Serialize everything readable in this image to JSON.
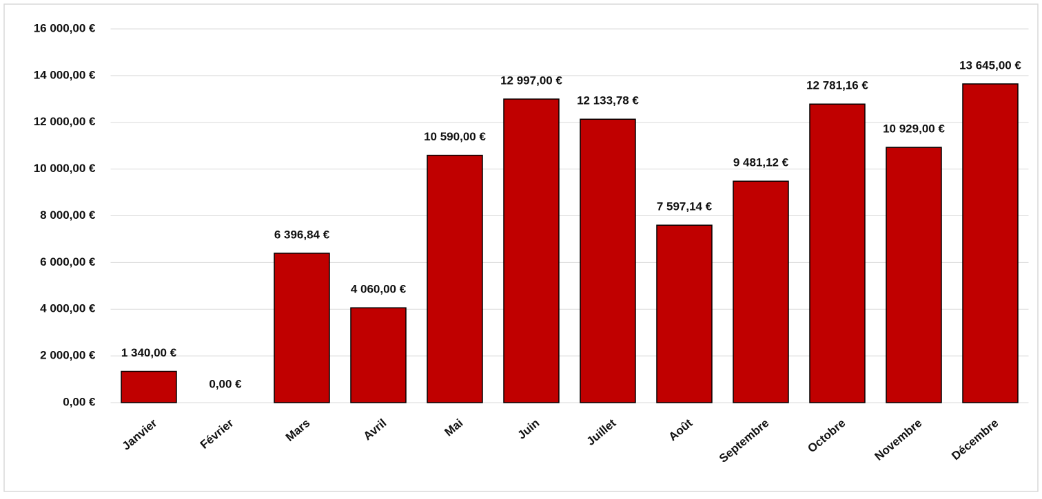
{
  "chart_data": {
    "type": "bar",
    "categories": [
      "Janvier",
      "Février",
      "Mars",
      "Avril",
      "Mai",
      "Juin",
      "Juillet",
      "Août",
      "Septembre",
      "Octobre",
      "Novembre",
      "Décembre"
    ],
    "values": [
      1340,
      0,
      6396.84,
      4060,
      10590,
      12997,
      12133.78,
      7597.14,
      9481.12,
      12781.16,
      10929,
      13645
    ],
    "value_labels": [
      "1 340,00 €",
      "0,00 €",
      "6 396,84 €",
      "4 060,00 €",
      "10 590,00 €",
      "12 997,00 €",
      "12 133,78 €",
      "7 597,14 €",
      "9 481,12 €",
      "12 781,16 €",
      "10 929,00 €",
      "13 645,00 €"
    ],
    "color": "#c00000",
    "ylim": [
      0,
      16000
    ],
    "yticks": [
      {
        "value": 0,
        "label": "0,00 €"
      },
      {
        "value": 2000,
        "label": "2 000,00 €"
      },
      {
        "value": 4000,
        "label": "4 000,00 €"
      },
      {
        "value": 6000,
        "label": "6 000,00 €"
      },
      {
        "value": 8000,
        "label": "8 000,00 €"
      },
      {
        "value": 10000,
        "label": "10 000,00 €"
      },
      {
        "value": 12000,
        "label": "12 000,00 €"
      },
      {
        "value": 14000,
        "label": "14 000,00 €"
      },
      {
        "value": 16000,
        "label": "16 000,00 €"
      }
    ],
    "grid": true
  }
}
